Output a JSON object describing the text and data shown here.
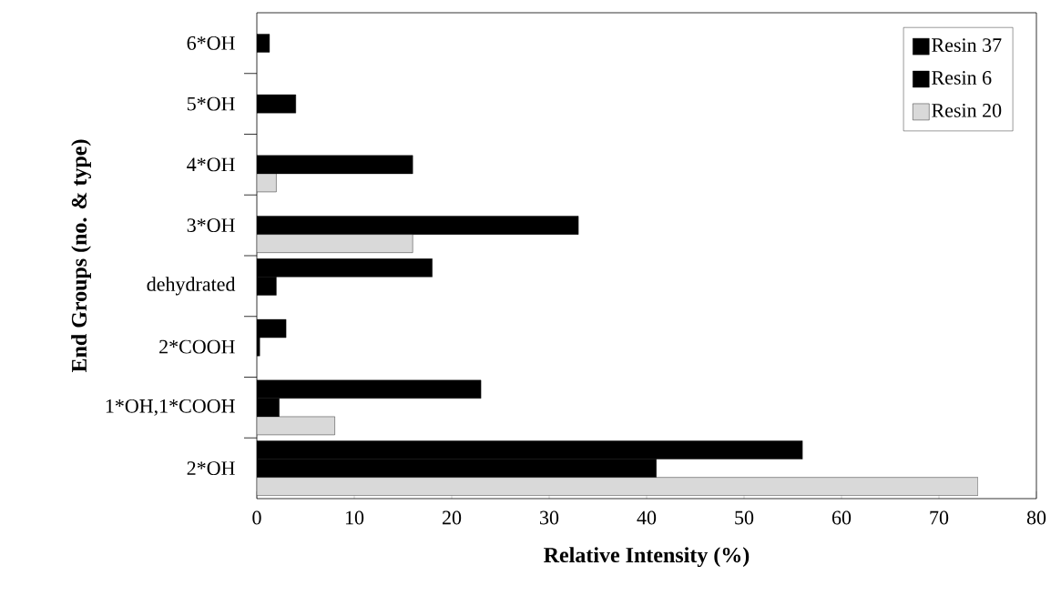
{
  "chart_data": {
    "type": "bar",
    "orientation": "horizontal",
    "xlabel": "Relative Intensity (%)",
    "ylabel": "End Groups (no. & type)",
    "categories": [
      "6*OH",
      "5*OH",
      "4*OH",
      "3*OH",
      "dehydrated",
      "2*COOH",
      "1*OH,1*COOH",
      "2*OH"
    ],
    "series": [
      {
        "name": "Resin 37",
        "color": "#000000",
        "values": [
          null,
          null,
          null,
          null,
          18,
          3,
          23,
          56
        ]
      },
      {
        "name": "Resin 6",
        "color": "#000000",
        "values": [
          1.3,
          4,
          16,
          33,
          2,
          0.3,
          2.3,
          41
        ]
      },
      {
        "name": "Resin 20",
        "color": "#d9d9d9",
        "values": [
          null,
          null,
          2,
          16,
          null,
          null,
          8,
          74
        ]
      }
    ],
    "xlim": [
      0,
      80
    ],
    "xticks": [
      0,
      10,
      20,
      30,
      40,
      50,
      60,
      70,
      80
    ],
    "grid": false,
    "legend": "top right"
  }
}
